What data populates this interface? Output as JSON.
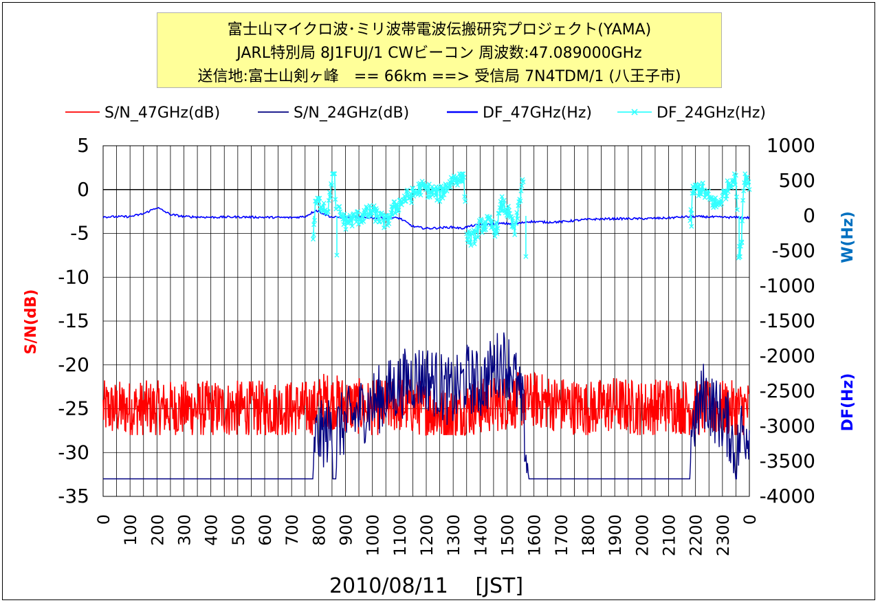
{
  "title_lines": [
    "富士山マイクロ波･ミリ波帯電波伝搬研究プロジェクト(YAMA)",
    "JARL特別局 8J1FUJ/1 CWビーコン 周波数:47.089000GHz",
    "送信地:富士山剣ヶ峰　== 66km ==> 受信局 7N4TDM/1 (八王子市)"
  ],
  "colors": {
    "sn47": "#ff0000",
    "sn24": "#000080",
    "df47": "#0000ff",
    "df24": "#33ffff",
    "ylabel_left": "#ff0000",
    "ylabel_right_top": "#0070c0",
    "ylabel_right_bottom": "#0000ff"
  },
  "chart_data": {
    "type": "line",
    "xlabel": "2010/08/11　 [JST]",
    "ylabel_left": "S/N(dB)",
    "ylabel_right_top": "W(Hz)",
    "ylabel_right_bottom": "DF(Hz)",
    "x_ticks": [
      "0",
      "100",
      "200",
      "300",
      "400",
      "500",
      "600",
      "700",
      "800",
      "900",
      "1000",
      "1100",
      "1200",
      "1300",
      "1400",
      "1500",
      "1600",
      "1700",
      "1800",
      "1900",
      "2000",
      "2100",
      "2200",
      "2300",
      "0"
    ],
    "y_left_ticks": [
      "5",
      "0",
      "-5",
      "-10",
      "-15",
      "-20",
      "-25",
      "-30",
      "-35"
    ],
    "y_right_ticks": [
      "1000",
      "500",
      "0",
      "-500",
      "-1000",
      "-1500",
      "-2000",
      "-2500",
      "-3000",
      "-3500",
      "-4000"
    ],
    "ylim_left": [
      -35,
      5
    ],
    "ylim_right": [
      -4000,
      1000
    ],
    "xlim_hours": [
      0,
      24
    ],
    "grid": true,
    "legend_position": "top",
    "series": [
      {
        "name": "S/N_47GHz(dB)",
        "axis": "left",
        "description_points": [
          [
            0,
            -25
          ],
          [
            7.8,
            -25
          ],
          [
            8.2,
            -24
          ],
          [
            9,
            -24.5
          ],
          [
            10,
            -25
          ],
          [
            11,
            -24.5
          ],
          [
            12,
            -25
          ],
          [
            12.8,
            -26
          ],
          [
            13.5,
            -25
          ],
          [
            14.5,
            -24.5
          ],
          [
            15.5,
            -24
          ],
          [
            16,
            -24
          ],
          [
            17,
            -24.5
          ],
          [
            18,
            -25
          ],
          [
            19,
            -24.5
          ],
          [
            20,
            -25
          ],
          [
            21,
            -24.5
          ],
          [
            22,
            -25
          ],
          [
            23,
            -25
          ],
          [
            24,
            -25
          ]
        ],
        "band": [
          -28,
          -20.5
        ]
      },
      {
        "name": "S/N_24GHz(dB)",
        "axis": "left",
        "points": [
          [
            0,
            -33
          ],
          [
            7.8,
            -33
          ],
          [
            7.85,
            -27
          ],
          [
            8.5,
            -26
          ],
          [
            8.6,
            -33
          ],
          [
            8.7,
            -26
          ],
          [
            9.5,
            -24
          ],
          [
            10.5,
            -22
          ],
          [
            11.5,
            -20
          ],
          [
            12,
            -20
          ],
          [
            12.5,
            -21
          ],
          [
            13,
            -22
          ],
          [
            13.5,
            -20
          ],
          [
            14,
            -21
          ],
          [
            14.8,
            -18
          ],
          [
            15.2,
            -19
          ],
          [
            15.6,
            -24
          ],
          [
            15.8,
            -33
          ],
          [
            21.8,
            -33
          ],
          [
            21.85,
            -26
          ],
          [
            22.3,
            -22
          ],
          [
            22.8,
            -24
          ],
          [
            23.3,
            -26
          ],
          [
            23.5,
            -30
          ],
          [
            23.7,
            -26
          ],
          [
            24,
            -26
          ]
        ]
      },
      {
        "name": "DF_47GHz(Hz)",
        "axis": "right",
        "points": [
          [
            0,
            -15
          ],
          [
            1,
            -10
          ],
          [
            1.5,
            30
          ],
          [
            2,
            120
          ],
          [
            2.5,
            20
          ],
          [
            3,
            -10
          ],
          [
            4,
            -20
          ],
          [
            5,
            -15
          ],
          [
            6,
            -20
          ],
          [
            7,
            -25
          ],
          [
            7.5,
            -10
          ],
          [
            7.9,
            80
          ],
          [
            8.5,
            -20
          ],
          [
            9,
            -20
          ],
          [
            10,
            -25
          ],
          [
            11,
            -30
          ],
          [
            11.5,
            -150
          ],
          [
            12,
            -180
          ],
          [
            12.5,
            -170
          ],
          [
            13,
            -160
          ],
          [
            13.3,
            -180
          ],
          [
            13.7,
            -140
          ],
          [
            14.5,
            -110
          ],
          [
            15.4,
            -110
          ],
          [
            15.8,
            -80
          ],
          [
            16.5,
            -90
          ],
          [
            17,
            -85
          ],
          [
            18,
            -50
          ],
          [
            19,
            -40
          ],
          [
            20,
            -40
          ],
          [
            21,
            -30
          ],
          [
            21.5,
            -15
          ],
          [
            22,
            -10
          ],
          [
            23,
            -20
          ],
          [
            24,
            -25
          ]
        ]
      },
      {
        "name": "DF_24GHz(Hz)",
        "axis": "right",
        "points": [
          [
            7.8,
            -260
          ],
          [
            7.9,
            200
          ],
          [
            8.2,
            150
          ],
          [
            8.3,
            80
          ],
          [
            8.4,
            200
          ],
          [
            8.5,
            560
          ],
          [
            8.6,
            590
          ],
          [
            8.7,
            -550
          ],
          [
            8.75,
            60
          ],
          [
            9,
            -90
          ],
          [
            9.5,
            -20
          ],
          [
            10,
            60
          ],
          [
            10.5,
            -100
          ],
          [
            10.8,
            100
          ],
          [
            11.2,
            250
          ],
          [
            11.5,
            300
          ],
          [
            11.8,
            400
          ],
          [
            12,
            380
          ],
          [
            12.5,
            300
          ],
          [
            12.8,
            440
          ],
          [
            13,
            520
          ],
          [
            13.4,
            580
          ],
          [
            13.5,
            -280
          ],
          [
            13.7,
            -350
          ],
          [
            14,
            -150
          ],
          [
            14.3,
            -100
          ],
          [
            14.6,
            -200
          ],
          [
            14.8,
            180
          ],
          [
            15,
            80
          ],
          [
            15.3,
            -230
          ],
          [
            15.5,
            320
          ],
          [
            15.6,
            540
          ],
          [
            15.7,
            -570
          ],
          [
            15.8,
            -450
          ],
          [
            21.8,
            -150
          ],
          [
            21.9,
            350
          ],
          [
            22.2,
            400
          ],
          [
            22.5,
            250
          ],
          [
            22.8,
            150
          ],
          [
            23.1,
            320
          ],
          [
            23.3,
            500
          ],
          [
            23.5,
            560
          ],
          [
            23.6,
            -580
          ],
          [
            23.7,
            -380
          ],
          [
            23.8,
            580
          ],
          [
            24,
            450
          ]
        ]
      }
    ]
  }
}
